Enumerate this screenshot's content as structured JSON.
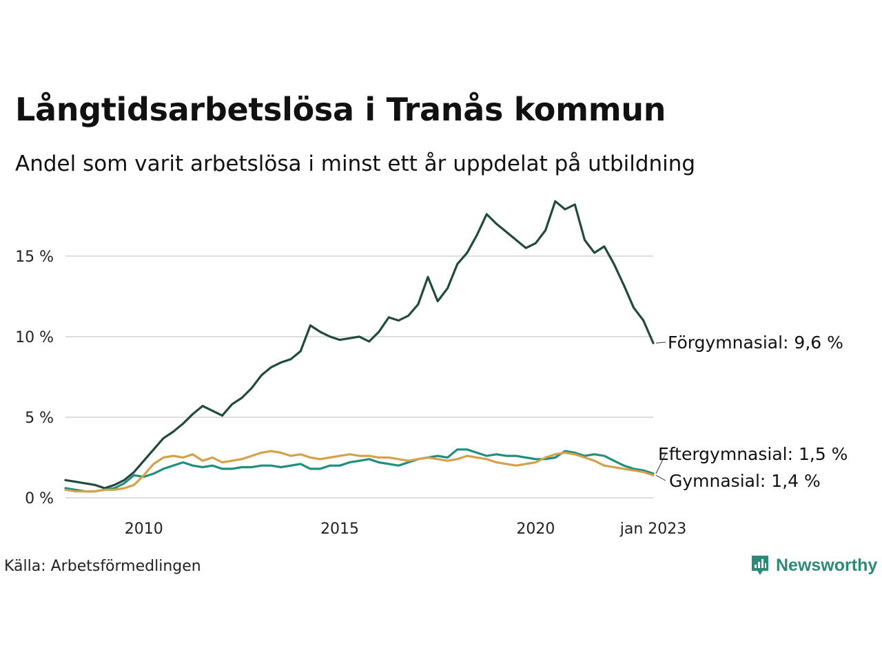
{
  "title": "Långtidsarbetslösa i Tranås kommun",
  "subtitle": "Andel som varit arbetslösa i minst ett år uppdelat på utbildning",
  "source": "Källa: Arbetsförmedlingen",
  "brand": "Newsworthy",
  "colors": {
    "forgymnasial": "#1f4a3d",
    "eftergymnasial": "#1f8f7d",
    "gymnasial": "#d4a14a",
    "grid": "#dddddd",
    "brand": "#2d8a78"
  },
  "chart_data": {
    "type": "line",
    "xlim": [
      2008.0,
      2023.0
    ],
    "ylim": [
      0,
      18.5
    ],
    "grid": true,
    "x_ticks": [
      {
        "value": 2010,
        "label": "2010"
      },
      {
        "value": 2015,
        "label": "2015"
      },
      {
        "value": 2020,
        "label": "2020"
      },
      {
        "value": 2023,
        "label": "jan 2023"
      }
    ],
    "y_ticks": [
      {
        "value": 0,
        "label": "0 %"
      },
      {
        "value": 5,
        "label": "5 %"
      },
      {
        "value": 10,
        "label": "10 %"
      },
      {
        "value": 15,
        "label": "15 %"
      }
    ],
    "series": [
      {
        "name": "Förgymnasial",
        "end_label": "Förgymnasial: 9,6 %",
        "color_key": "forgymnasial",
        "points": [
          [
            2008.0,
            1.1
          ],
          [
            2008.25,
            1.0
          ],
          [
            2008.5,
            0.9
          ],
          [
            2008.75,
            0.8
          ],
          [
            2009.0,
            0.6
          ],
          [
            2009.25,
            0.8
          ],
          [
            2009.5,
            1.1
          ],
          [
            2009.75,
            1.6
          ],
          [
            2010.0,
            2.3
          ],
          [
            2010.25,
            3.0
          ],
          [
            2010.5,
            3.7
          ],
          [
            2010.75,
            4.1
          ],
          [
            2011.0,
            4.6
          ],
          [
            2011.25,
            5.2
          ],
          [
            2011.5,
            5.7
          ],
          [
            2011.75,
            5.4
          ],
          [
            2012.0,
            5.1
          ],
          [
            2012.25,
            5.8
          ],
          [
            2012.5,
            6.2
          ],
          [
            2012.75,
            6.8
          ],
          [
            2013.0,
            7.6
          ],
          [
            2013.25,
            8.1
          ],
          [
            2013.5,
            8.4
          ],
          [
            2013.75,
            8.6
          ],
          [
            2014.0,
            9.1
          ],
          [
            2014.25,
            10.7
          ],
          [
            2014.5,
            10.3
          ],
          [
            2014.75,
            10.0
          ],
          [
            2015.0,
            9.8
          ],
          [
            2015.25,
            9.9
          ],
          [
            2015.5,
            10.0
          ],
          [
            2015.75,
            9.7
          ],
          [
            2016.0,
            10.3
          ],
          [
            2016.25,
            11.2
          ],
          [
            2016.5,
            11.0
          ],
          [
            2016.75,
            11.3
          ],
          [
            2017.0,
            12.0
          ],
          [
            2017.25,
            13.7
          ],
          [
            2017.5,
            12.2
          ],
          [
            2017.75,
            13.0
          ],
          [
            2018.0,
            14.5
          ],
          [
            2018.25,
            15.2
          ],
          [
            2018.5,
            16.3
          ],
          [
            2018.75,
            17.6
          ],
          [
            2019.0,
            17.0
          ],
          [
            2019.25,
            16.5
          ],
          [
            2019.5,
            16.0
          ],
          [
            2019.75,
            15.5
          ],
          [
            2020.0,
            15.8
          ],
          [
            2020.25,
            16.6
          ],
          [
            2020.5,
            18.4
          ],
          [
            2020.75,
            17.9
          ],
          [
            2021.0,
            18.2
          ],
          [
            2021.25,
            16.0
          ],
          [
            2021.5,
            15.2
          ],
          [
            2021.75,
            15.6
          ],
          [
            2022.0,
            14.5
          ],
          [
            2022.25,
            13.2
          ],
          [
            2022.5,
            11.8
          ],
          [
            2022.75,
            11.0
          ],
          [
            2023.0,
            9.6
          ]
        ]
      },
      {
        "name": "Eftergymnasial",
        "end_label": "Eftergymnasial: 1,5 %",
        "color_key": "eftergymnasial",
        "points": [
          [
            2008.0,
            0.6
          ],
          [
            2008.25,
            0.5
          ],
          [
            2008.5,
            0.4
          ],
          [
            2008.75,
            0.4
          ],
          [
            2009.0,
            0.5
          ],
          [
            2009.25,
            0.6
          ],
          [
            2009.5,
            0.9
          ],
          [
            2009.75,
            1.4
          ],
          [
            2010.0,
            1.3
          ],
          [
            2010.25,
            1.5
          ],
          [
            2010.5,
            1.8
          ],
          [
            2010.75,
            2.0
          ],
          [
            2011.0,
            2.2
          ],
          [
            2011.25,
            2.0
          ],
          [
            2011.5,
            1.9
          ],
          [
            2011.75,
            2.0
          ],
          [
            2012.0,
            1.8
          ],
          [
            2012.25,
            1.8
          ],
          [
            2012.5,
            1.9
          ],
          [
            2012.75,
            1.9
          ],
          [
            2013.0,
            2.0
          ],
          [
            2013.25,
            2.0
          ],
          [
            2013.5,
            1.9
          ],
          [
            2013.75,
            2.0
          ],
          [
            2014.0,
            2.1
          ],
          [
            2014.25,
            1.8
          ],
          [
            2014.5,
            1.8
          ],
          [
            2014.75,
            2.0
          ],
          [
            2015.0,
            2.0
          ],
          [
            2015.25,
            2.2
          ],
          [
            2015.5,
            2.3
          ],
          [
            2015.75,
            2.4
          ],
          [
            2016.0,
            2.2
          ],
          [
            2016.25,
            2.1
          ],
          [
            2016.5,
            2.0
          ],
          [
            2016.75,
            2.2
          ],
          [
            2017.0,
            2.4
          ],
          [
            2017.25,
            2.5
          ],
          [
            2017.5,
            2.6
          ],
          [
            2017.75,
            2.5
          ],
          [
            2018.0,
            3.0
          ],
          [
            2018.25,
            3.0
          ],
          [
            2018.5,
            2.8
          ],
          [
            2018.75,
            2.6
          ],
          [
            2019.0,
            2.7
          ],
          [
            2019.25,
            2.6
          ],
          [
            2019.5,
            2.6
          ],
          [
            2019.75,
            2.5
          ],
          [
            2020.0,
            2.4
          ],
          [
            2020.25,
            2.4
          ],
          [
            2020.5,
            2.5
          ],
          [
            2020.75,
            2.9
          ],
          [
            2021.0,
            2.8
          ],
          [
            2021.25,
            2.6
          ],
          [
            2021.5,
            2.7
          ],
          [
            2021.75,
            2.6
          ],
          [
            2022.0,
            2.3
          ],
          [
            2022.25,
            2.0
          ],
          [
            2022.5,
            1.8
          ],
          [
            2022.75,
            1.7
          ],
          [
            2023.0,
            1.5
          ]
        ]
      },
      {
        "name": "Gymnasial",
        "end_label": "Gymnasial: 1,4 %",
        "color_key": "gymnasial",
        "points": [
          [
            2008.0,
            0.5
          ],
          [
            2008.25,
            0.4
          ],
          [
            2008.5,
            0.4
          ],
          [
            2008.75,
            0.4
          ],
          [
            2009.0,
            0.5
          ],
          [
            2009.25,
            0.5
          ],
          [
            2009.5,
            0.6
          ],
          [
            2009.75,
            0.8
          ],
          [
            2010.0,
            1.4
          ],
          [
            2010.25,
            2.1
          ],
          [
            2010.5,
            2.5
          ],
          [
            2010.75,
            2.6
          ],
          [
            2011.0,
            2.5
          ],
          [
            2011.25,
            2.7
          ],
          [
            2011.5,
            2.3
          ],
          [
            2011.75,
            2.5
          ],
          [
            2012.0,
            2.2
          ],
          [
            2012.25,
            2.3
          ],
          [
            2012.5,
            2.4
          ],
          [
            2012.75,
            2.6
          ],
          [
            2013.0,
            2.8
          ],
          [
            2013.25,
            2.9
          ],
          [
            2013.5,
            2.8
          ],
          [
            2013.75,
            2.6
          ],
          [
            2014.0,
            2.7
          ],
          [
            2014.25,
            2.5
          ],
          [
            2014.5,
            2.4
          ],
          [
            2014.75,
            2.5
          ],
          [
            2015.0,
            2.6
          ],
          [
            2015.25,
            2.7
          ],
          [
            2015.5,
            2.6
          ],
          [
            2015.75,
            2.6
          ],
          [
            2016.0,
            2.5
          ],
          [
            2016.25,
            2.5
          ],
          [
            2016.5,
            2.4
          ],
          [
            2016.75,
            2.3
          ],
          [
            2017.0,
            2.4
          ],
          [
            2017.25,
            2.5
          ],
          [
            2017.5,
            2.4
          ],
          [
            2017.75,
            2.3
          ],
          [
            2018.0,
            2.4
          ],
          [
            2018.25,
            2.6
          ],
          [
            2018.5,
            2.5
          ],
          [
            2018.75,
            2.4
          ],
          [
            2019.0,
            2.2
          ],
          [
            2019.25,
            2.1
          ],
          [
            2019.5,
            2.0
          ],
          [
            2019.75,
            2.1
          ],
          [
            2020.0,
            2.2
          ],
          [
            2020.25,
            2.5
          ],
          [
            2020.5,
            2.7
          ],
          [
            2020.75,
            2.8
          ],
          [
            2021.0,
            2.7
          ],
          [
            2021.25,
            2.5
          ],
          [
            2021.5,
            2.3
          ],
          [
            2021.75,
            2.0
          ],
          [
            2022.0,
            1.9
          ],
          [
            2022.25,
            1.8
          ],
          [
            2022.5,
            1.7
          ],
          [
            2022.75,
            1.6
          ],
          [
            2023.0,
            1.4
          ]
        ]
      }
    ]
  }
}
